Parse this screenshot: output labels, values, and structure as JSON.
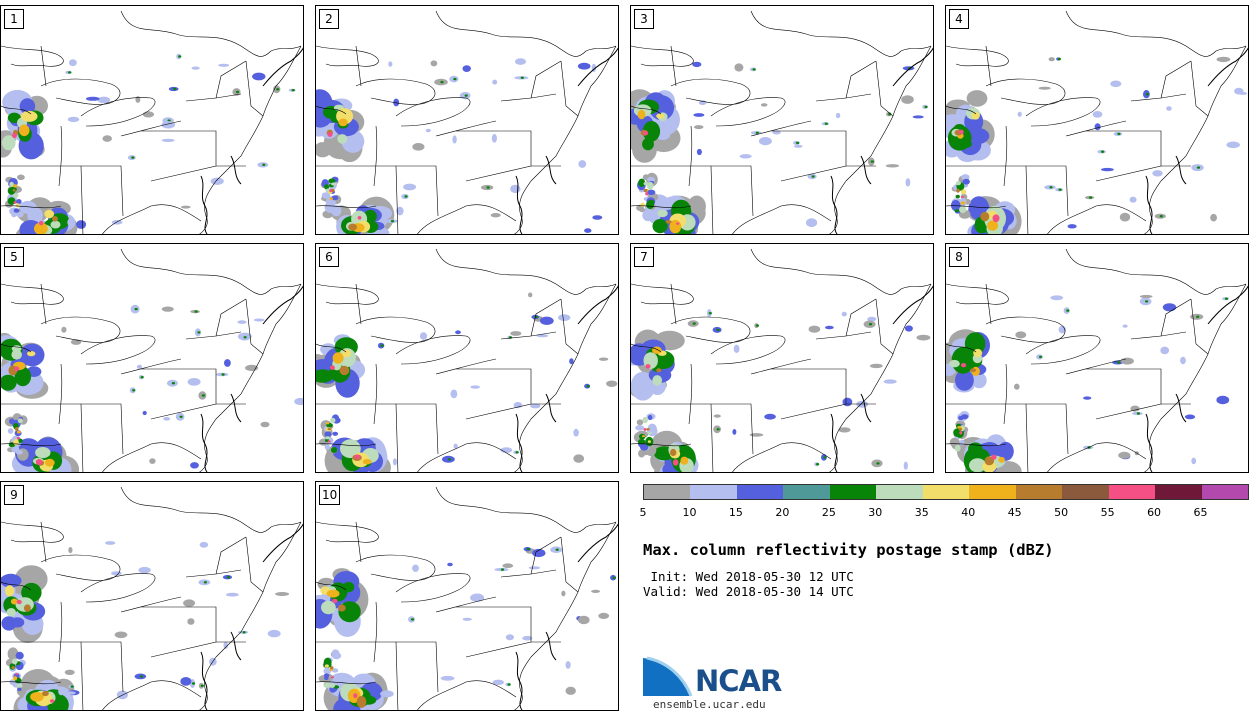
{
  "panels": [
    {
      "label": "1"
    },
    {
      "label": "2"
    },
    {
      "label": "3"
    },
    {
      "label": "4"
    },
    {
      "label": "5"
    },
    {
      "label": "6"
    },
    {
      "label": "7"
    },
    {
      "label": "8"
    },
    {
      "label": "9"
    },
    {
      "label": "10"
    }
  ],
  "colorbar": {
    "colors": [
      "#a6a6a6",
      "#b5bfef",
      "#5560de",
      "#4f9999",
      "#088508",
      "#bcdcbc",
      "#f2de6a",
      "#f0b21c",
      "#b87c2e",
      "#8b5a3c",
      "#f45085",
      "#701838",
      "#b348ad"
    ],
    "ticks": [
      "5",
      "10",
      "15",
      "20",
      "25",
      "30",
      "35",
      "40",
      "45",
      "50",
      "55",
      "60",
      "65"
    ]
  },
  "title": "Max. column reflectivity postage stamp (dBZ)",
  "init_line": " Init: Wed 2018-05-30 12 UTC",
  "valid_line": "Valid: Wed 2018-05-30 14 UTC",
  "logo": {
    "text": "NCAR",
    "site": "ensemble.ucar.edu"
  }
}
